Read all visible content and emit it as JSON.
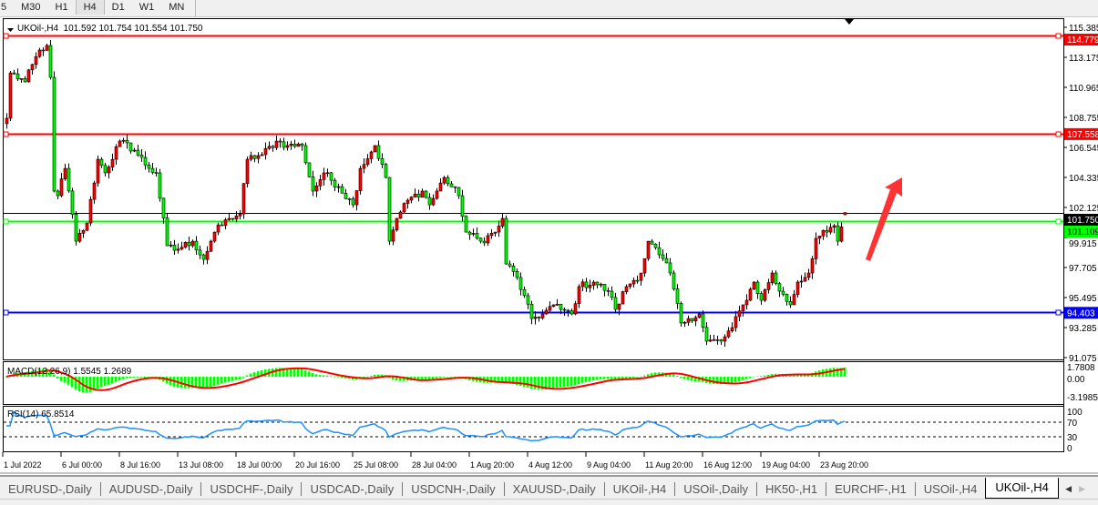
{
  "toolbar": {
    "timeframes": [
      "5",
      "M30",
      "H1",
      "H4",
      "D1",
      "W1",
      "MN"
    ],
    "active": "H4"
  },
  "chart": {
    "symbol_header": "UKOil-,H4  101.592 101.754 101.554 101.750",
    "ohlc": {
      "open": 101.592,
      "high": 101.754,
      "low": 101.554,
      "close": 101.75
    },
    "price_axis": [
      "115.385",
      "113.175",
      "110.965",
      "108.755",
      "106.545",
      "104.335",
      "102.125",
      "99.915",
      "97.705",
      "95.495",
      "93.285",
      "91.075"
    ],
    "price_range": [
      91.075,
      115.385
    ],
    "current_price": "101.750",
    "levels": [
      {
        "value": "114.779",
        "color": "#ff0000"
      },
      {
        "value": "107.558",
        "color": "#ff0000"
      },
      {
        "value": "101.109",
        "color": "#00ff00"
      },
      {
        "value": "94.403",
        "color": "#0000ff"
      }
    ],
    "up_candle_color": "#ff0000",
    "down_candle_color": "#00ff00",
    "arrow_color": "#ff3333",
    "key_closes": [
      [
        0,
        108.69
      ],
      [
        1,
        112.03
      ],
      [
        5,
        111.37
      ],
      [
        9,
        113.71
      ],
      [
        11,
        114.05
      ],
      [
        12,
        111.7
      ],
      [
        13,
        103.33
      ],
      [
        14,
        102.99
      ],
      [
        16,
        105.0
      ],
      [
        19,
        99.64
      ],
      [
        22,
        100.98
      ],
      [
        25,
        105.67
      ],
      [
        27,
        104.67
      ],
      [
        31,
        107.01
      ],
      [
        35,
        106.34
      ],
      [
        39,
        105.0
      ],
      [
        41,
        104.67
      ],
      [
        44,
        99.31
      ],
      [
        46,
        98.97
      ],
      [
        51,
        99.64
      ],
      [
        54,
        98.3
      ],
      [
        57,
        100.31
      ],
      [
        61,
        101.32
      ],
      [
        64,
        101.65
      ],
      [
        66,
        105.67
      ],
      [
        70,
        106.01
      ],
      [
        74,
        107.01
      ],
      [
        77,
        106.68
      ],
      [
        81,
        106.68
      ],
      [
        84,
        103.33
      ],
      [
        87,
        104.67
      ],
      [
        91,
        103.66
      ],
      [
        95,
        102.32
      ],
      [
        97,
        105.0
      ],
      [
        101,
        106.68
      ],
      [
        104,
        104.33
      ],
      [
        105,
        99.64
      ],
      [
        107,
        101.32
      ],
      [
        110,
        102.66
      ],
      [
        114,
        103.33
      ],
      [
        116,
        102.32
      ],
      [
        120,
        104.33
      ],
      [
        124,
        102.99
      ],
      [
        126,
        100.31
      ],
      [
        130,
        99.64
      ],
      [
        134,
        100.31
      ],
      [
        136,
        101.32
      ],
      [
        137,
        97.97
      ],
      [
        140,
        96.97
      ],
      [
        144,
        93.95
      ],
      [
        147,
        94.29
      ],
      [
        150,
        94.96
      ],
      [
        152,
        94.62
      ],
      [
        155,
        94.29
      ],
      [
        157,
        96.3
      ],
      [
        161,
        96.63
      ],
      [
        165,
        95.96
      ],
      [
        167,
        94.62
      ],
      [
        170,
        96.3
      ],
      [
        174,
        97.3
      ],
      [
        176,
        99.64
      ],
      [
        179,
        98.64
      ],
      [
        182,
        97.3
      ],
      [
        185,
        93.62
      ],
      [
        187,
        93.95
      ],
      [
        190,
        94.29
      ],
      [
        192,
        92.28
      ],
      [
        196,
        92.28
      ],
      [
        199,
        93.28
      ],
      [
        202,
        94.96
      ],
      [
        205,
        96.63
      ],
      [
        207,
        95.29
      ],
      [
        210,
        97.3
      ],
      [
        212,
        95.96
      ],
      [
        215,
        94.96
      ],
      [
        217,
        96.63
      ],
      [
        220,
        97.3
      ],
      [
        222,
        99.85
      ],
      [
        225,
        100.31
      ],
      [
        227,
        100.78
      ],
      [
        228,
        99.64
      ],
      [
        230,
        101.75
      ]
    ]
  },
  "macd": {
    "label": "MACD(12,26,9) 1.5545 1.2689",
    "axis": [
      "1.7808",
      "0.00",
      "-3.1985"
    ],
    "hist_color": "#00ff00",
    "signal_color": "#ff0000"
  },
  "rsi": {
    "label": "RSI(14) 65.8514",
    "axis": [
      "100",
      "70",
      "30",
      "0"
    ],
    "line_color": "#1e90ff"
  },
  "time_axis": [
    "1 Jul 2022",
    "6 Jul 00:00",
    "8 Jul 16:00",
    "13 Jul 08:00",
    "18 Jul 00:00",
    "20 Jul 16:00",
    "25 Jul 08:00",
    "28 Jul 04:00",
    "1 Aug 20:00",
    "4 Aug 12:00",
    "9 Aug 04:00",
    "11 Aug 20:00",
    "16 Aug 12:00",
    "19 Aug 04:00",
    "23 Aug 20:00"
  ],
  "tabs": [
    "EURUSD-,Daily",
    "AUDUSD-,Daily",
    "USDCHF-,Daily",
    "USDCAD-,Daily",
    "USDCNH-,Daily",
    "XAUUSD-,Daily",
    "UKOil-,H4",
    "USOil-,Daily",
    "HK50-,H1",
    "EURCHF-,H1",
    "USOil-,H4",
    "UKOil-,H4"
  ],
  "active_tab": 11,
  "icons": {
    "tab_scroll_left": "triangle-left-icon",
    "tab_scroll_right": "triangle-right-icon",
    "header_menu": "triangle-down-icon",
    "chart_shift": "triangle-down-icon"
  }
}
